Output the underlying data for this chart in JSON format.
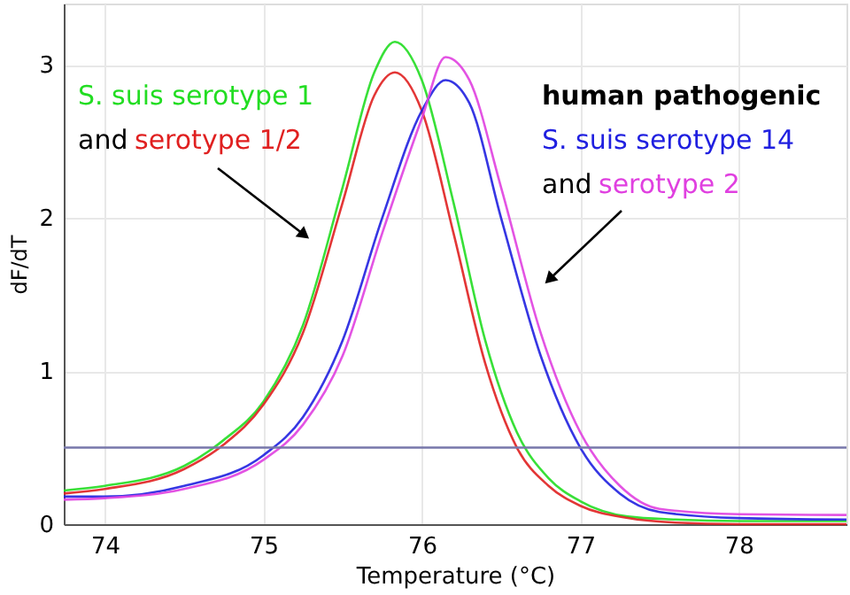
{
  "chart_data": {
    "type": "line",
    "xlabel": "Temperature (°C)",
    "ylabel": "dF/dT",
    "xlim": [
      73.74,
      78.68
    ],
    "xticks": [
      74,
      75,
      76,
      77,
      78
    ],
    "ylim": [
      0,
      3.4
    ],
    "yticks": [
      0,
      1,
      2,
      3
    ],
    "grid": true,
    "legend": false,
    "marker": "none",
    "line_style": "solid",
    "series": [
      {
        "color": "#22dd22",
        "x": [
          73.74,
          74,
          74.5,
          74.75,
          75,
          75.25,
          75.5,
          75.7,
          75.83,
          76,
          76.2,
          76.4,
          76.6,
          76.8,
          77,
          77.3,
          77.6,
          78,
          78.68
        ],
        "values": [
          0.22,
          0.25,
          0.38,
          0.55,
          0.8,
          1.3,
          2.2,
          2.95,
          3.15,
          2.9,
          2.1,
          1.2,
          0.6,
          0.3,
          0.15,
          0.05,
          0.03,
          0.02,
          0.02
        ]
      },
      {
        "color": "#e02020",
        "x": [
          73.74,
          74,
          74.5,
          74.75,
          75,
          75.25,
          75.5,
          75.7,
          75.83,
          76,
          76.2,
          76.4,
          76.6,
          76.8,
          77,
          77.3,
          77.6,
          78,
          78.68
        ],
        "values": [
          0.2,
          0.23,
          0.36,
          0.52,
          0.78,
          1.25,
          2.1,
          2.8,
          2.95,
          2.7,
          1.9,
          1.05,
          0.5,
          0.25,
          0.12,
          0.04,
          0.01,
          0.0,
          0.0
        ]
      },
      {
        "color": "#2020e0",
        "x": [
          73.74,
          74,
          74.5,
          75,
          75.25,
          75.5,
          75.75,
          76,
          76.15,
          76.3,
          76.5,
          76.75,
          77,
          77.25,
          77.5,
          78,
          78.68
        ],
        "values": [
          0.18,
          0.18,
          0.25,
          0.45,
          0.7,
          1.2,
          2.0,
          2.7,
          2.9,
          2.75,
          2.0,
          1.1,
          0.5,
          0.2,
          0.08,
          0.04,
          0.03
        ]
      },
      {
        "color": "#e040e0",
        "x": [
          73.74,
          74,
          74.5,
          75,
          75.25,
          75.5,
          75.75,
          76,
          76.15,
          76.3,
          76.5,
          76.75,
          77,
          77.25,
          77.5,
          78,
          78.68
        ],
        "values": [
          0.16,
          0.17,
          0.23,
          0.42,
          0.65,
          1.1,
          1.9,
          2.65,
          3.05,
          2.9,
          2.2,
          1.25,
          0.6,
          0.25,
          0.1,
          0.065,
          0.06
        ]
      }
    ],
    "ref_lines": [
      {
        "axis": "y",
        "value": 0.5,
        "color": "#7777aa"
      }
    ],
    "annotations": [
      "S. suis serotype 1",
      "and",
      "serotype 1/2",
      "human pathogenic",
      "S. suis serotype 14",
      "and",
      "serotype 2"
    ]
  }
}
